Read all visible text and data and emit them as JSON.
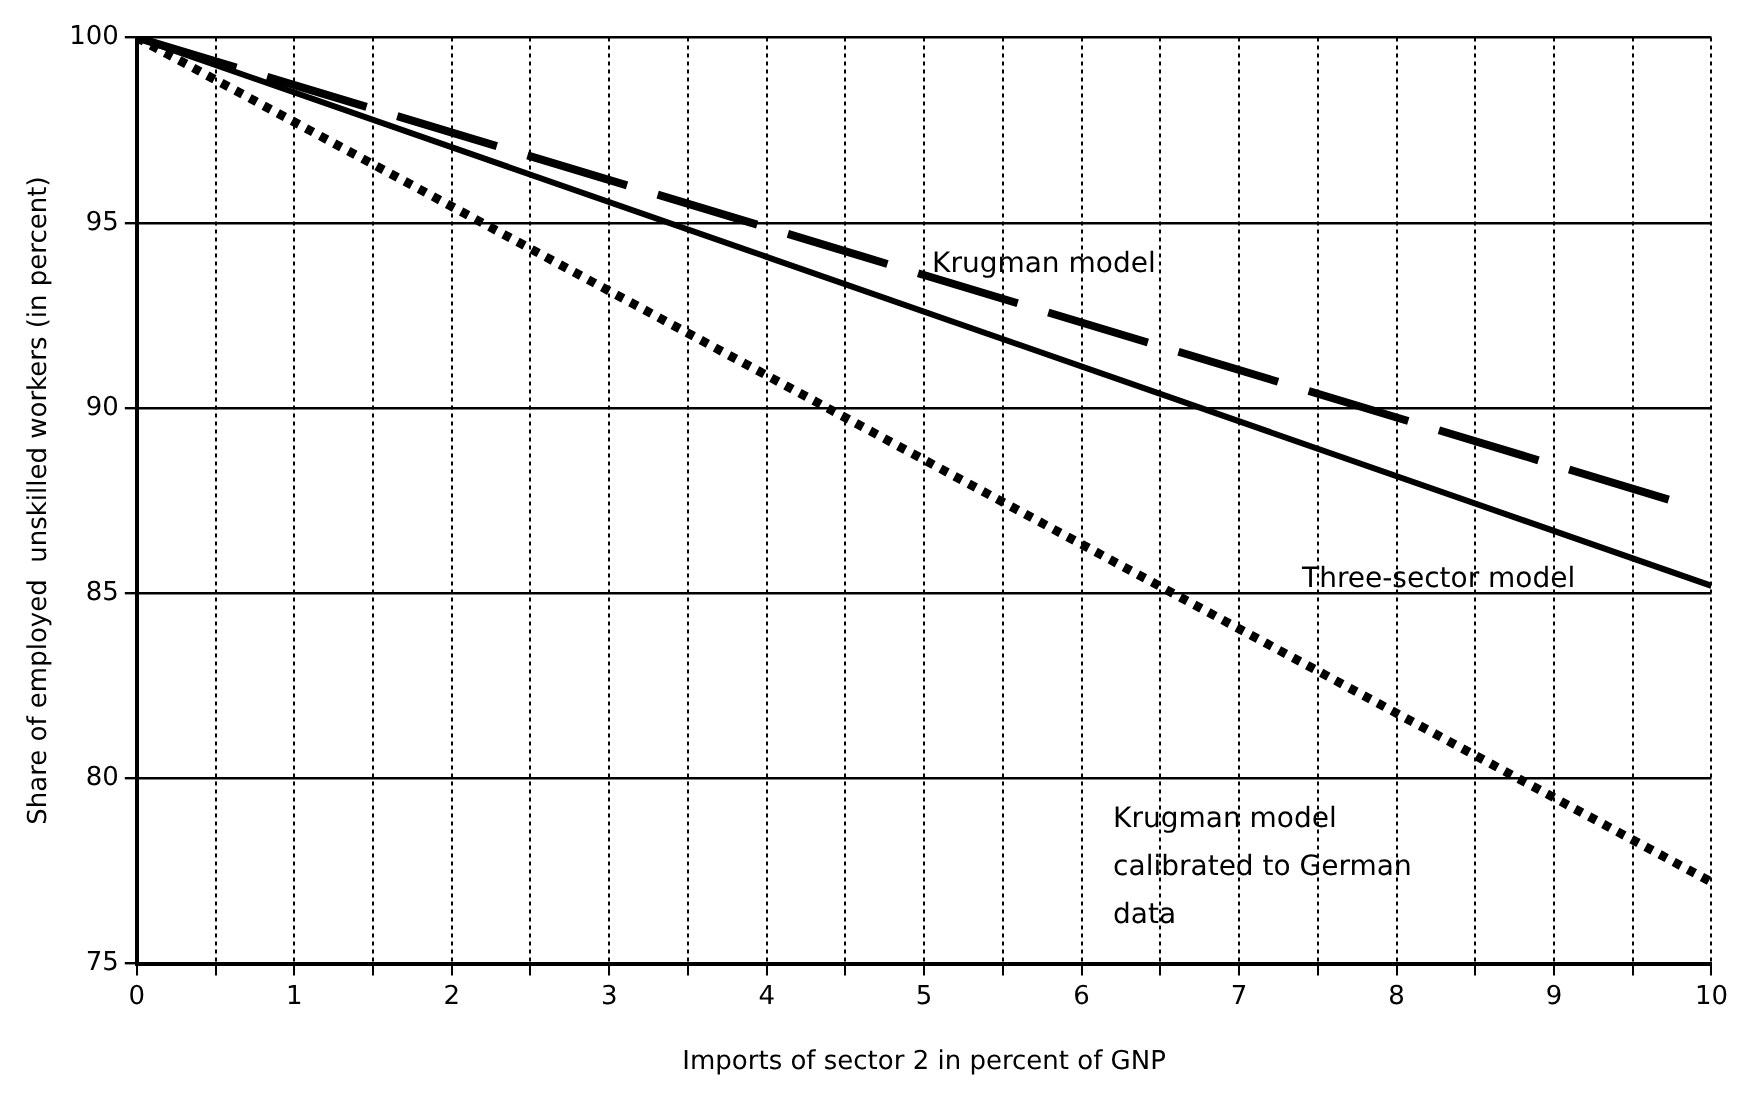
{
  "chart_data": {
    "type": "line",
    "xlabel": "Imports of sector 2 in percent of GNP",
    "ylabel": "Share of employed  unskilled workers (in percent)",
    "series": [
      {
        "name": "Krugman model",
        "x": [
          0,
          9.75
        ],
        "values": [
          100,
          87.5
        ],
        "color": "#000000",
        "line_style": "dashed"
      },
      {
        "name": "Three-sector model",
        "x": [
          0,
          10
        ],
        "values": [
          100,
          85.2
        ],
        "color": "#000000",
        "line_style": "solid"
      },
      {
        "name": "Krugman model calibrated to German data",
        "x": [
          0,
          10
        ],
        "values": [
          100,
          77.2
        ],
        "color": "#000000",
        "line_style": "dotted"
      }
    ],
    "xlim": [
      0,
      10
    ],
    "ylim": [
      75,
      100
    ],
    "xticks": [
      0,
      {
        "value": 0.5,
        "label": null
      },
      1,
      {
        "value": 1.5,
        "label": null
      },
      2,
      {
        "value": 2.5,
        "label": null
      },
      3,
      {
        "value": 3.5,
        "label": null
      },
      4,
      {
        "value": 4.5,
        "label": null
      },
      5,
      {
        "value": 5.5,
        "label": null
      },
      6,
      {
        "value": 6.5,
        "label": null
      },
      7,
      {
        "value": 7.5,
        "label": null
      },
      8,
      {
        "value": 8.5,
        "label": null
      },
      9,
      {
        "value": 9.5,
        "label": null
      },
      10
    ],
    "yticks": [
      75,
      80,
      85,
      90,
      95,
      100
    ],
    "grid": true,
    "legend": false,
    "marker": "none"
  }
}
